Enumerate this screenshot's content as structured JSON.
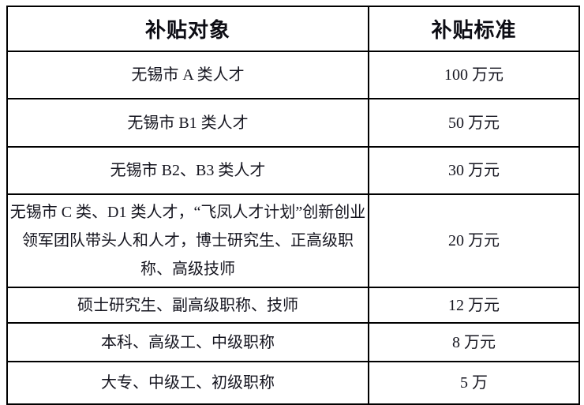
{
  "table": {
    "columns": [
      {
        "label": "补贴对象"
      },
      {
        "label": "补贴标准"
      }
    ],
    "rows": [
      {
        "target": "无锡市 A 类人才",
        "standard": "100 万元"
      },
      {
        "target": "无锡市 B1 类人才",
        "standard": "50 万元"
      },
      {
        "target": "无锡市 B2、B3 类人才",
        "standard": "30 万元"
      },
      {
        "target": "无锡市 C 类、D1 类人才，“飞凤人才计划”创新创业领军团队带头人和人才，博士研究生、正高级职称、高级技师",
        "standard": "20 万元"
      },
      {
        "target": "硕士研究生、副高级职称、技师",
        "standard": "12 万元"
      },
      {
        "target": "本科、高级工、中级职称",
        "standard": "8 万元"
      },
      {
        "target": "大专、中级工、初级职称",
        "standard": "5 万"
      }
    ],
    "colors": {
      "border": "#000000",
      "text": "#15151f",
      "background": "#ffffff"
    }
  }
}
